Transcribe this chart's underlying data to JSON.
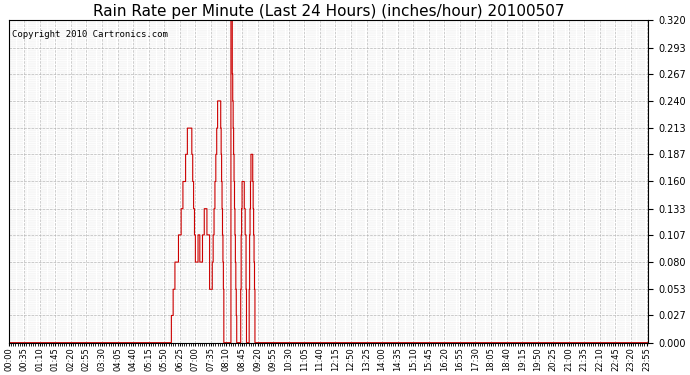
{
  "title": "Rain Rate per Minute (Last 24 Hours) (inches/hour) 20100507",
  "copyright_text": "Copyright 2010 Cartronics.com",
  "background_color": "#ffffff",
  "line_color": "#cc0000",
  "grid_color": "#aaaaaa",
  "ylim": [
    0.0,
    0.32
  ],
  "yticks": [
    0.0,
    0.027,
    0.053,
    0.08,
    0.107,
    0.133,
    0.16,
    0.187,
    0.213,
    0.24,
    0.267,
    0.293,
    0.32
  ],
  "title_fontsize": 11,
  "tick_interval_minutes": 35,
  "rain_data": [
    [
      0,
      0.0
    ],
    [
      365,
      0.0
    ],
    [
      366,
      0.027
    ],
    [
      368,
      0.027
    ],
    [
      370,
      0.053
    ],
    [
      372,
      0.053
    ],
    [
      374,
      0.08
    ],
    [
      376,
      0.08
    ],
    [
      378,
      0.08
    ],
    [
      380,
      0.08
    ],
    [
      382,
      0.107
    ],
    [
      384,
      0.107
    ],
    [
      386,
      0.107
    ],
    [
      388,
      0.133
    ],
    [
      390,
      0.133
    ],
    [
      392,
      0.16
    ],
    [
      394,
      0.16
    ],
    [
      396,
      0.16
    ],
    [
      398,
      0.187
    ],
    [
      400,
      0.187
    ],
    [
      402,
      0.213
    ],
    [
      404,
      0.213
    ],
    [
      406,
      0.213
    ],
    [
      408,
      0.213
    ],
    [
      410,
      0.213
    ],
    [
      412,
      0.187
    ],
    [
      414,
      0.16
    ],
    [
      416,
      0.133
    ],
    [
      418,
      0.107
    ],
    [
      420,
      0.08
    ],
    [
      422,
      0.08
    ],
    [
      424,
      0.08
    ],
    [
      426,
      0.107
    ],
    [
      428,
      0.107
    ],
    [
      430,
      0.08
    ],
    [
      432,
      0.08
    ],
    [
      434,
      0.08
    ],
    [
      436,
      0.107
    ],
    [
      438,
      0.107
    ],
    [
      440,
      0.133
    ],
    [
      442,
      0.133
    ],
    [
      444,
      0.133
    ],
    [
      446,
      0.107
    ],
    [
      448,
      0.107
    ],
    [
      450,
      0.107
    ],
    [
      452,
      0.053
    ],
    [
      454,
      0.053
    ],
    [
      456,
      0.053
    ],
    [
      458,
      0.08
    ],
    [
      460,
      0.107
    ],
    [
      462,
      0.133
    ],
    [
      464,
      0.16
    ],
    [
      466,
      0.187
    ],
    [
      468,
      0.213
    ],
    [
      470,
      0.24
    ],
    [
      472,
      0.24
    ],
    [
      474,
      0.24
    ],
    [
      476,
      0.24
    ],
    [
      477,
      0.213
    ],
    [
      478,
      0.187
    ],
    [
      479,
      0.16
    ],
    [
      480,
      0.133
    ],
    [
      481,
      0.107
    ],
    [
      482,
      0.08
    ],
    [
      483,
      0.053
    ],
    [
      484,
      0.0
    ],
    [
      490,
      0.0
    ],
    [
      491,
      0.0
    ],
    [
      492,
      0.0
    ],
    [
      493,
      0.0
    ],
    [
      494,
      0.0
    ],
    [
      495,
      0.0
    ],
    [
      496,
      0.0
    ],
    [
      497,
      0.0
    ],
    [
      498,
      0.0
    ],
    [
      499,
      0.0
    ],
    [
      500,
      0.32
    ],
    [
      501,
      0.32
    ],
    [
      502,
      0.32
    ],
    [
      503,
      0.267
    ],
    [
      504,
      0.24
    ],
    [
      505,
      0.213
    ],
    [
      506,
      0.187
    ],
    [
      507,
      0.16
    ],
    [
      508,
      0.133
    ],
    [
      509,
      0.107
    ],
    [
      510,
      0.08
    ],
    [
      511,
      0.053
    ],
    [
      512,
      0.027
    ],
    [
      513,
      0.0
    ],
    [
      520,
      0.0
    ],
    [
      521,
      0.0
    ],
    [
      522,
      0.053
    ],
    [
      523,
      0.107
    ],
    [
      524,
      0.133
    ],
    [
      525,
      0.16
    ],
    [
      526,
      0.16
    ],
    [
      527,
      0.16
    ],
    [
      528,
      0.16
    ],
    [
      529,
      0.16
    ],
    [
      530,
      0.133
    ],
    [
      531,
      0.133
    ],
    [
      532,
      0.107
    ],
    [
      533,
      0.107
    ],
    [
      534,
      0.053
    ],
    [
      535,
      0.0
    ],
    [
      540,
      0.0
    ],
    [
      541,
      0.053
    ],
    [
      542,
      0.107
    ],
    [
      543,
      0.133
    ],
    [
      544,
      0.16
    ],
    [
      545,
      0.187
    ],
    [
      546,
      0.187
    ],
    [
      547,
      0.187
    ],
    [
      548,
      0.187
    ],
    [
      549,
      0.16
    ],
    [
      550,
      0.133
    ],
    [
      551,
      0.107
    ],
    [
      552,
      0.08
    ],
    [
      553,
      0.053
    ],
    [
      554,
      0.0
    ],
    [
      700,
      0.0
    ],
    [
      1439,
      0.0
    ]
  ]
}
